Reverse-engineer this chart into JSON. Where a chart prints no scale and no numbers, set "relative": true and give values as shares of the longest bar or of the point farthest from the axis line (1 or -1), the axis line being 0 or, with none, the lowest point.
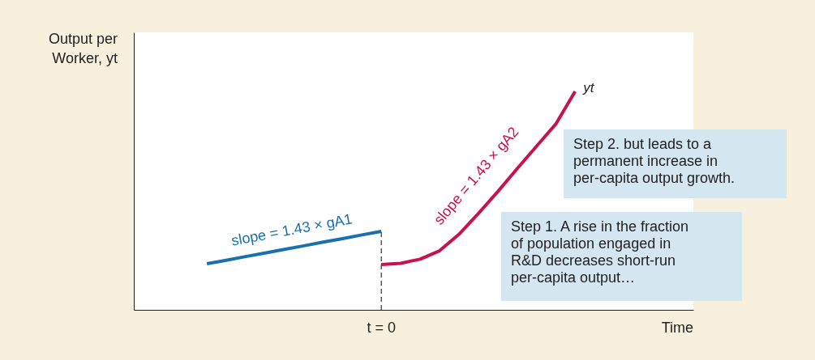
{
  "chart_data": {
    "type": "line",
    "relative": true,
    "categories": [
      null,
      null,
      null,
      null,
      null,
      null,
      null,
      null,
      null,
      null,
      null,
      null,
      null,
      null,
      null,
      null,
      null,
      null,
      null,
      null
    ],
    "series": [
      {
        "color": "#1a6fad",
        "values": [
          0.211,
          0.227,
          0.244,
          0.26,
          0.277,
          0.293,
          0.31,
          0.326,
          0.343,
          0.359,
          null,
          null,
          null,
          null,
          null,
          null,
          null,
          null,
          null,
          null
        ]
      },
      {
        "name": "yt",
        "color": "#c8124f",
        "values": [
          null,
          null,
          null,
          null,
          null,
          null,
          null,
          null,
          null,
          0.207,
          0.213,
          0.232,
          0.27,
          0.345,
          0.44,
          0.54,
          0.645,
          0.748,
          0.85,
          1
        ]
      }
    ],
    "ref_lines": [
      {
        "axis": "x",
        "label": "t = 0",
        "line_style": "dashed",
        "color": "#333333"
      }
    ],
    "annotations": [
      "slope = 1.43 × gA1",
      "slope = 1.43 × gA2",
      "Step 2. but leads to a\npermanent increase in\nper-capita output growth.",
      "Step 1. A rise in the fraction\nof population engaged in\nR&D decreases short-run\nper-capita output…",
      "Output per\nWorker, yt",
      "Time"
    ],
    "grid": false,
    "marker": "none",
    "line_style": "solid"
  }
}
